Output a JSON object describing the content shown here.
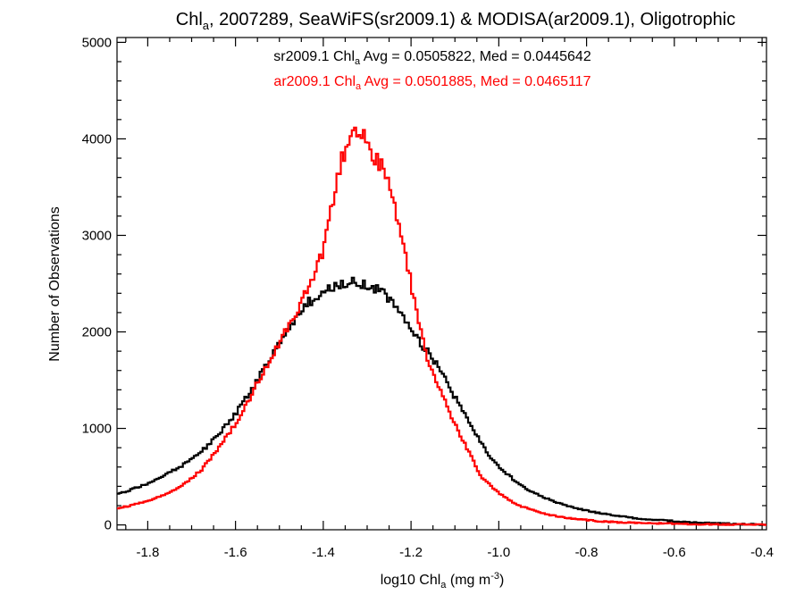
{
  "chart_data": {
    "type": "line",
    "title": "Chl",
    "title_sub": "a",
    "title_rest": ", 2007289, SeaWiFS(sr2009.1) & MODISA(ar2009.1), Oligotrophic",
    "xlabel_main": "log10 Chl",
    "xlabel_sub": "a",
    "xlabel_unit": " (mg m",
    "xlabel_sup": "-3",
    "xlabel_close": ")",
    "ylabel": "Number of Observations",
    "xlim": [
      -1.87,
      -0.39
    ],
    "ylim": [
      -50,
      5050
    ],
    "x_ticks": [
      -1.8,
      -1.6,
      -1.4,
      -1.2,
      -1.0,
      -0.8,
      -0.6,
      -0.4
    ],
    "x_tick_labels": [
      "-1.8",
      "-1.6",
      "-1.4",
      "-1.2",
      "-1.0",
      "-0.8",
      "-0.6",
      "-0.4"
    ],
    "y_ticks": [
      0,
      1000,
      2000,
      3000,
      4000,
      5000
    ],
    "y_tick_labels": [
      "0",
      "1000",
      "2000",
      "3000",
      "4000",
      "5000"
    ],
    "grid": false,
    "legend": "top-center",
    "annotations": [
      {
        "pre": "sr2009.1 Chl",
        "sub": "a",
        "post": " Avg = 0.0505822, Med = 0.0445642",
        "color": "#000000"
      },
      {
        "pre": "ar2009.1 Chl",
        "sub": "a",
        "post": " Avg = 0.0501885, Med = 0.0465117",
        "color": "#ff0000"
      }
    ],
    "series": [
      {
        "color": "#000000",
        "x": [
          -1.87,
          -1.84,
          -1.8,
          -1.76,
          -1.72,
          -1.68,
          -1.64,
          -1.6,
          -1.56,
          -1.52,
          -1.48,
          -1.44,
          -1.4,
          -1.36,
          -1.33,
          -1.3,
          -1.26,
          -1.22,
          -1.18,
          -1.14,
          -1.1,
          -1.06,
          -1.02,
          -0.98,
          -0.94,
          -0.9,
          -0.86,
          -0.82,
          -0.78,
          -0.74,
          -0.7,
          -0.66,
          -0.62,
          -0.58,
          -0.54,
          -0.5,
          -0.46,
          -0.42,
          -0.39
        ],
        "y": [
          320,
          360,
          430,
          520,
          620,
          750,
          930,
          1150,
          1420,
          1740,
          2040,
          2280,
          2420,
          2490,
          2510,
          2490,
          2400,
          2200,
          1900,
          1650,
          1320,
          1000,
          700,
          520,
          380,
          290,
          220,
          170,
          130,
          100,
          75,
          58,
          45,
          32,
          24,
          16,
          10,
          6,
          3
        ]
      },
      {
        "color": "#ff0000",
        "x": [
          -1.87,
          -1.84,
          -1.8,
          -1.76,
          -1.72,
          -1.68,
          -1.64,
          -1.6,
          -1.56,
          -1.52,
          -1.48,
          -1.44,
          -1.4,
          -1.38,
          -1.36,
          -1.34,
          -1.32,
          -1.3,
          -1.28,
          -1.26,
          -1.24,
          -1.22,
          -1.2,
          -1.18,
          -1.16,
          -1.12,
          -1.08,
          -1.04,
          -1.0,
          -0.96,
          -0.92,
          -0.88,
          -0.84,
          -0.8,
          -0.76,
          -0.72,
          -0.68,
          -0.64,
          -0.6,
          -0.56,
          -0.52,
          -0.48,
          -0.44,
          -0.39
        ],
        "y": [
          170,
          200,
          250,
          310,
          410,
          560,
          780,
          1050,
          1380,
          1720,
          2050,
          2400,
          2850,
          3300,
          3750,
          4000,
          4120,
          3950,
          3800,
          3650,
          3350,
          2950,
          2500,
          2050,
          1650,
          1250,
          860,
          500,
          330,
          210,
          150,
          100,
          70,
          50,
          35,
          26,
          20,
          16,
          12,
          9,
          6,
          4,
          3,
          2
        ]
      }
    ]
  }
}
